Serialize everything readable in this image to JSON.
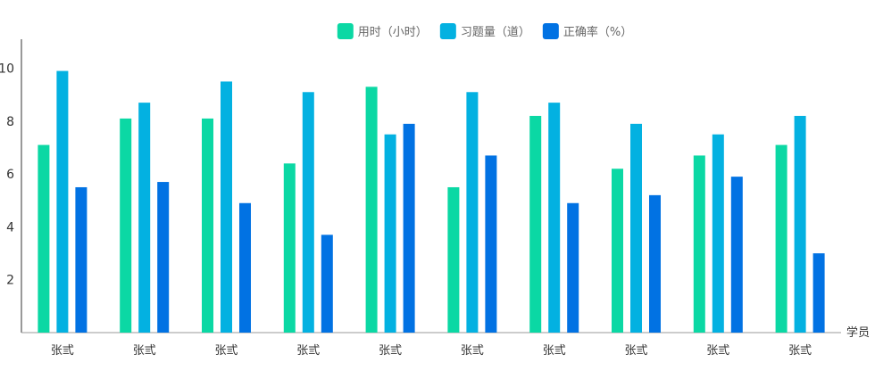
{
  "chart_data": {
    "type": "bar",
    "categories": [
      "张弎",
      "张弎",
      "张弎",
      "张弎",
      "张弎",
      "张弎",
      "张弎",
      "张弎",
      "张弎",
      "张弎"
    ],
    "series": [
      {
        "name": "用时（小时）",
        "color": "#0bd8a4",
        "values": [
          7.1,
          8.1,
          8.1,
          6.4,
          9.3,
          5.5,
          8.2,
          6.2,
          6.7,
          7.1
        ]
      },
      {
        "name": "习题量（道）",
        "color": "#03b1e1",
        "values": [
          9.9,
          8.7,
          9.5,
          9.1,
          7.5,
          9.1,
          8.7,
          7.9,
          7.5,
          8.2
        ]
      },
      {
        "name": "正确率（%）",
        "color": "#0172e3",
        "values": [
          5.5,
          5.7,
          4.9,
          3.7,
          7.9,
          6.7,
          4.9,
          5.2,
          5.9,
          3.0
        ]
      }
    ],
    "xlabel": "学员",
    "ylabel": "",
    "ylim": [
      0,
      11.1
    ],
    "yticks": [
      2,
      4,
      6,
      8,
      10
    ],
    "legend_position": "top-center",
    "grid": false
  }
}
